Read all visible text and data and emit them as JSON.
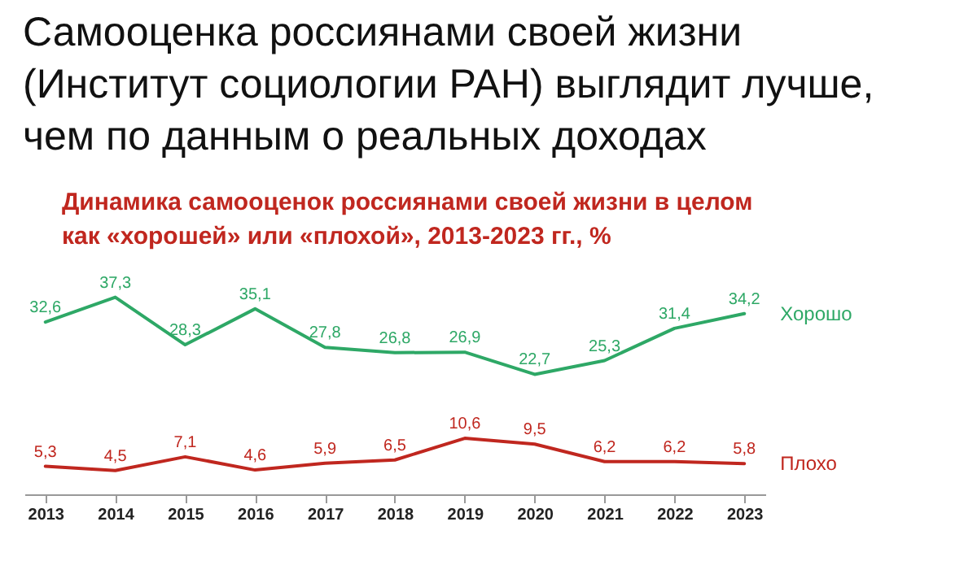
{
  "chart_data": {
    "type": "line",
    "title": "Самооценка россиянами своей жизни (Институт социологии РАН) выглядит лучше, чем по данным о реальных доходах",
    "subtitle": "Динамика самооценок россиянами своей жизни в целом как «хорошей» или «плохой», 2013-2023 гг., %",
    "categories": [
      "2013",
      "2014",
      "2015",
      "2016",
      "2017",
      "2018",
      "2019",
      "2020",
      "2021",
      "2022",
      "2023"
    ],
    "series": [
      {
        "name": "Хорошо",
        "color": "#2ea866",
        "values": [
          32.6,
          37.3,
          28.3,
          35.1,
          27.8,
          26.8,
          26.9,
          22.7,
          25.3,
          31.4,
          34.2
        ],
        "value_labels": [
          "32,6",
          "37,3",
          "28,3",
          "35,1",
          "27,8",
          "26,8",
          "26,9",
          "22,7",
          "25,3",
          "31,4",
          "34,2"
        ]
      },
      {
        "name": "Плохо",
        "color": "#c0271f",
        "values": [
          5.3,
          4.5,
          7.1,
          4.6,
          5.9,
          6.5,
          10.6,
          9.5,
          6.2,
          6.2,
          5.8
        ],
        "value_labels": [
          "5,3",
          "4,5",
          "7,1",
          "4,6",
          "5,9",
          "6,5",
          "10,6",
          "9,5",
          "6,2",
          "6,2",
          "5,8"
        ]
      }
    ]
  }
}
